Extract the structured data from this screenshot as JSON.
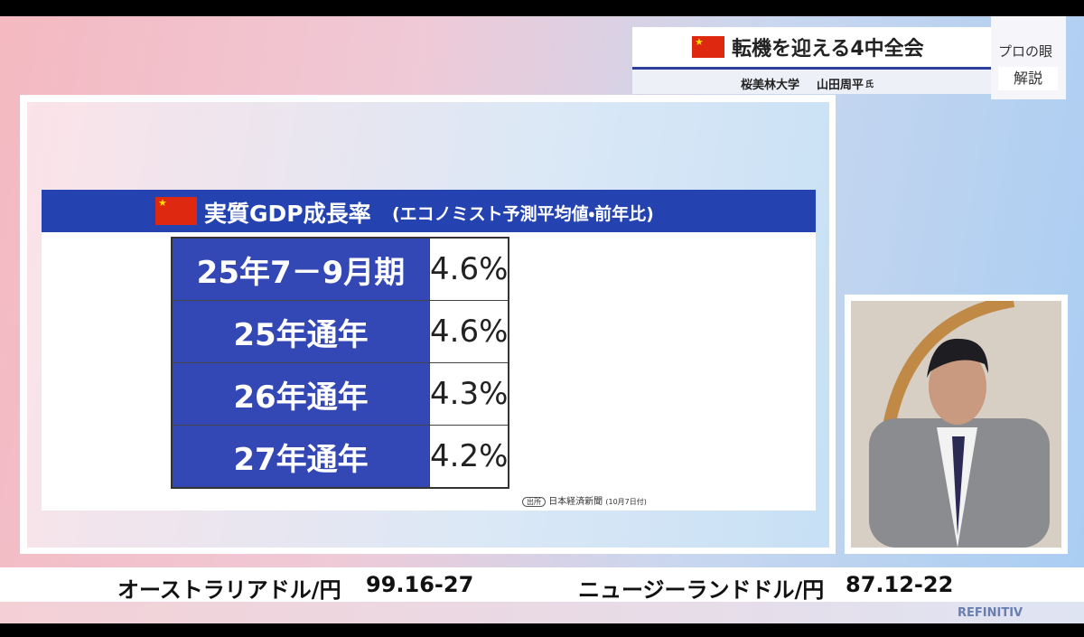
{
  "header": {
    "title": "転機を迎える4中全会",
    "affiliation": "桜美林大学",
    "speaker": "山田周平",
    "honorific": "氏"
  },
  "badge": {
    "top": "プロの眼",
    "bottom": "解説"
  },
  "panel": {
    "title": "実質GDP成長率",
    "subtitle": "(エコノミスト予測平均値・前年比)"
  },
  "table": {
    "rows": [
      [
        "25年7－9月期",
        "4.6%"
      ],
      [
        "25年通年",
        "4.6%"
      ],
      [
        "26年通年",
        "4.3%"
      ],
      [
        "27年通年",
        "4.2%"
      ]
    ]
  },
  "source": {
    "tag": "出所",
    "name": "日本経済新聞",
    "date": "(10月7日付)"
  },
  "ticker": [
    {
      "label": "オーストラリアドル/円",
      "value": "99.16-27"
    },
    {
      "label": "ニュージーランドドル/円",
      "value": "87.12-22"
    }
  ],
  "brand": "REFINITIV"
}
